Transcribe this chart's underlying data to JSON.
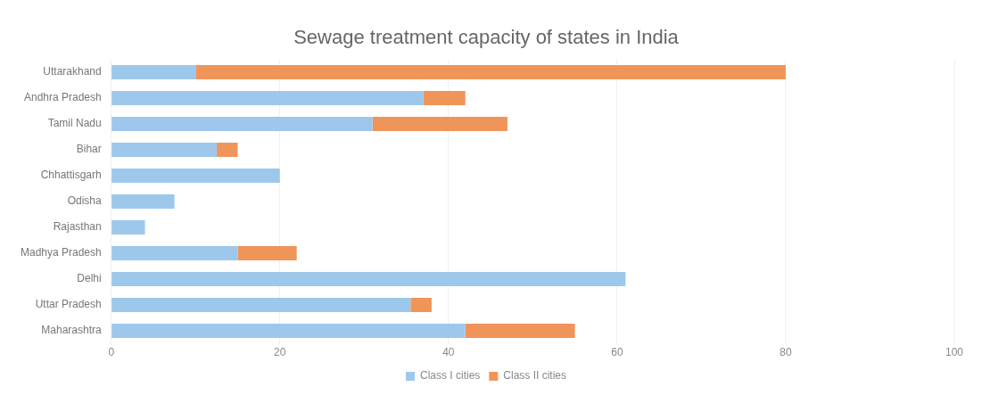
{
  "chart_data": {
    "type": "bar",
    "orientation": "horizontal",
    "stacked": true,
    "title": "Sewage treatment capacity of states in India",
    "categories": [
      "Uttarakhand",
      "Andhra Pradesh",
      "Tamil Nadu",
      "Bihar",
      "Chhattisgarh",
      "Odisha",
      "Rajasthan",
      "Madhya Pradesh",
      "Delhi",
      "Uttar Pradesh",
      "Maharashtra"
    ],
    "series": [
      {
        "name": "Class I cities",
        "color": "#9dc8ec",
        "values": [
          10,
          37,
          31,
          12.5,
          20,
          7.5,
          4,
          15,
          61,
          35.5,
          42
        ]
      },
      {
        "name": "Class II cities",
        "color": "#f0955a",
        "values": [
          70,
          5,
          16,
          2.5,
          null,
          null,
          null,
          7,
          null,
          2.5,
          13
        ]
      }
    ],
    "xlim": [
      0,
      100
    ],
    "xticks": [
      0,
      20,
      40,
      60,
      80,
      100
    ],
    "grid": "x",
    "legend": "bottom"
  }
}
